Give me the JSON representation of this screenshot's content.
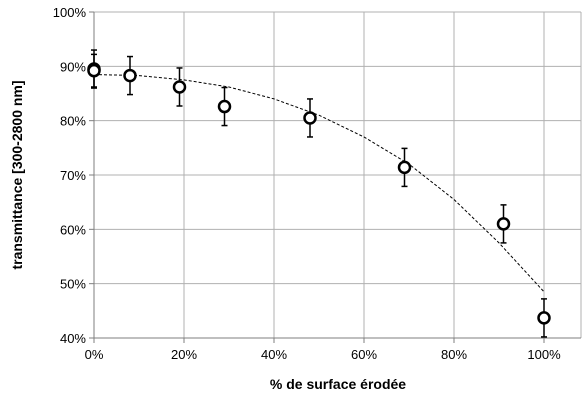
{
  "chart_data": {
    "type": "scatter",
    "xlabel": "% de surface érodée",
    "ylabel": "transmittance  [300-2800 nm]",
    "xlim": [
      0,
      100
    ],
    "ylim": [
      40,
      100
    ],
    "x_ticks": [
      "0%",
      "20%",
      "40%",
      "60%",
      "80%",
      "100%"
    ],
    "y_ticks": [
      "40%",
      "50%",
      "60%",
      "70%",
      "80%",
      "90%",
      "100%"
    ],
    "grid": true,
    "legend": "none",
    "series": [
      {
        "marker": "open-circle",
        "x": [
          0,
          0,
          8,
          19,
          29,
          48,
          69,
          91,
          100
        ],
        "y": [
          89.5,
          89.2,
          88.3,
          86.2,
          82.6,
          80.5,
          71.4,
          61.0,
          43.7
        ],
        "error": [
          3.5,
          3.0,
          3.5,
          3.5,
          3.5,
          3.5,
          3.5,
          3.5,
          3.5
        ]
      }
    ],
    "trend_line": {
      "style": "dashed",
      "x": [
        0,
        10,
        20,
        30,
        40,
        50,
        60,
        70,
        80,
        90,
        100
      ],
      "y": [
        88.5,
        88.3,
        87.5,
        86.2,
        84.0,
        81.0,
        77.0,
        72.0,
        65.5,
        57.5,
        48.5
      ]
    },
    "colors": {
      "marker_stroke": "#000000",
      "marker_fill": "#ffffff",
      "grid": "#b0b0b0",
      "axis": "#7f7f7f",
      "trend": "#000000"
    }
  }
}
